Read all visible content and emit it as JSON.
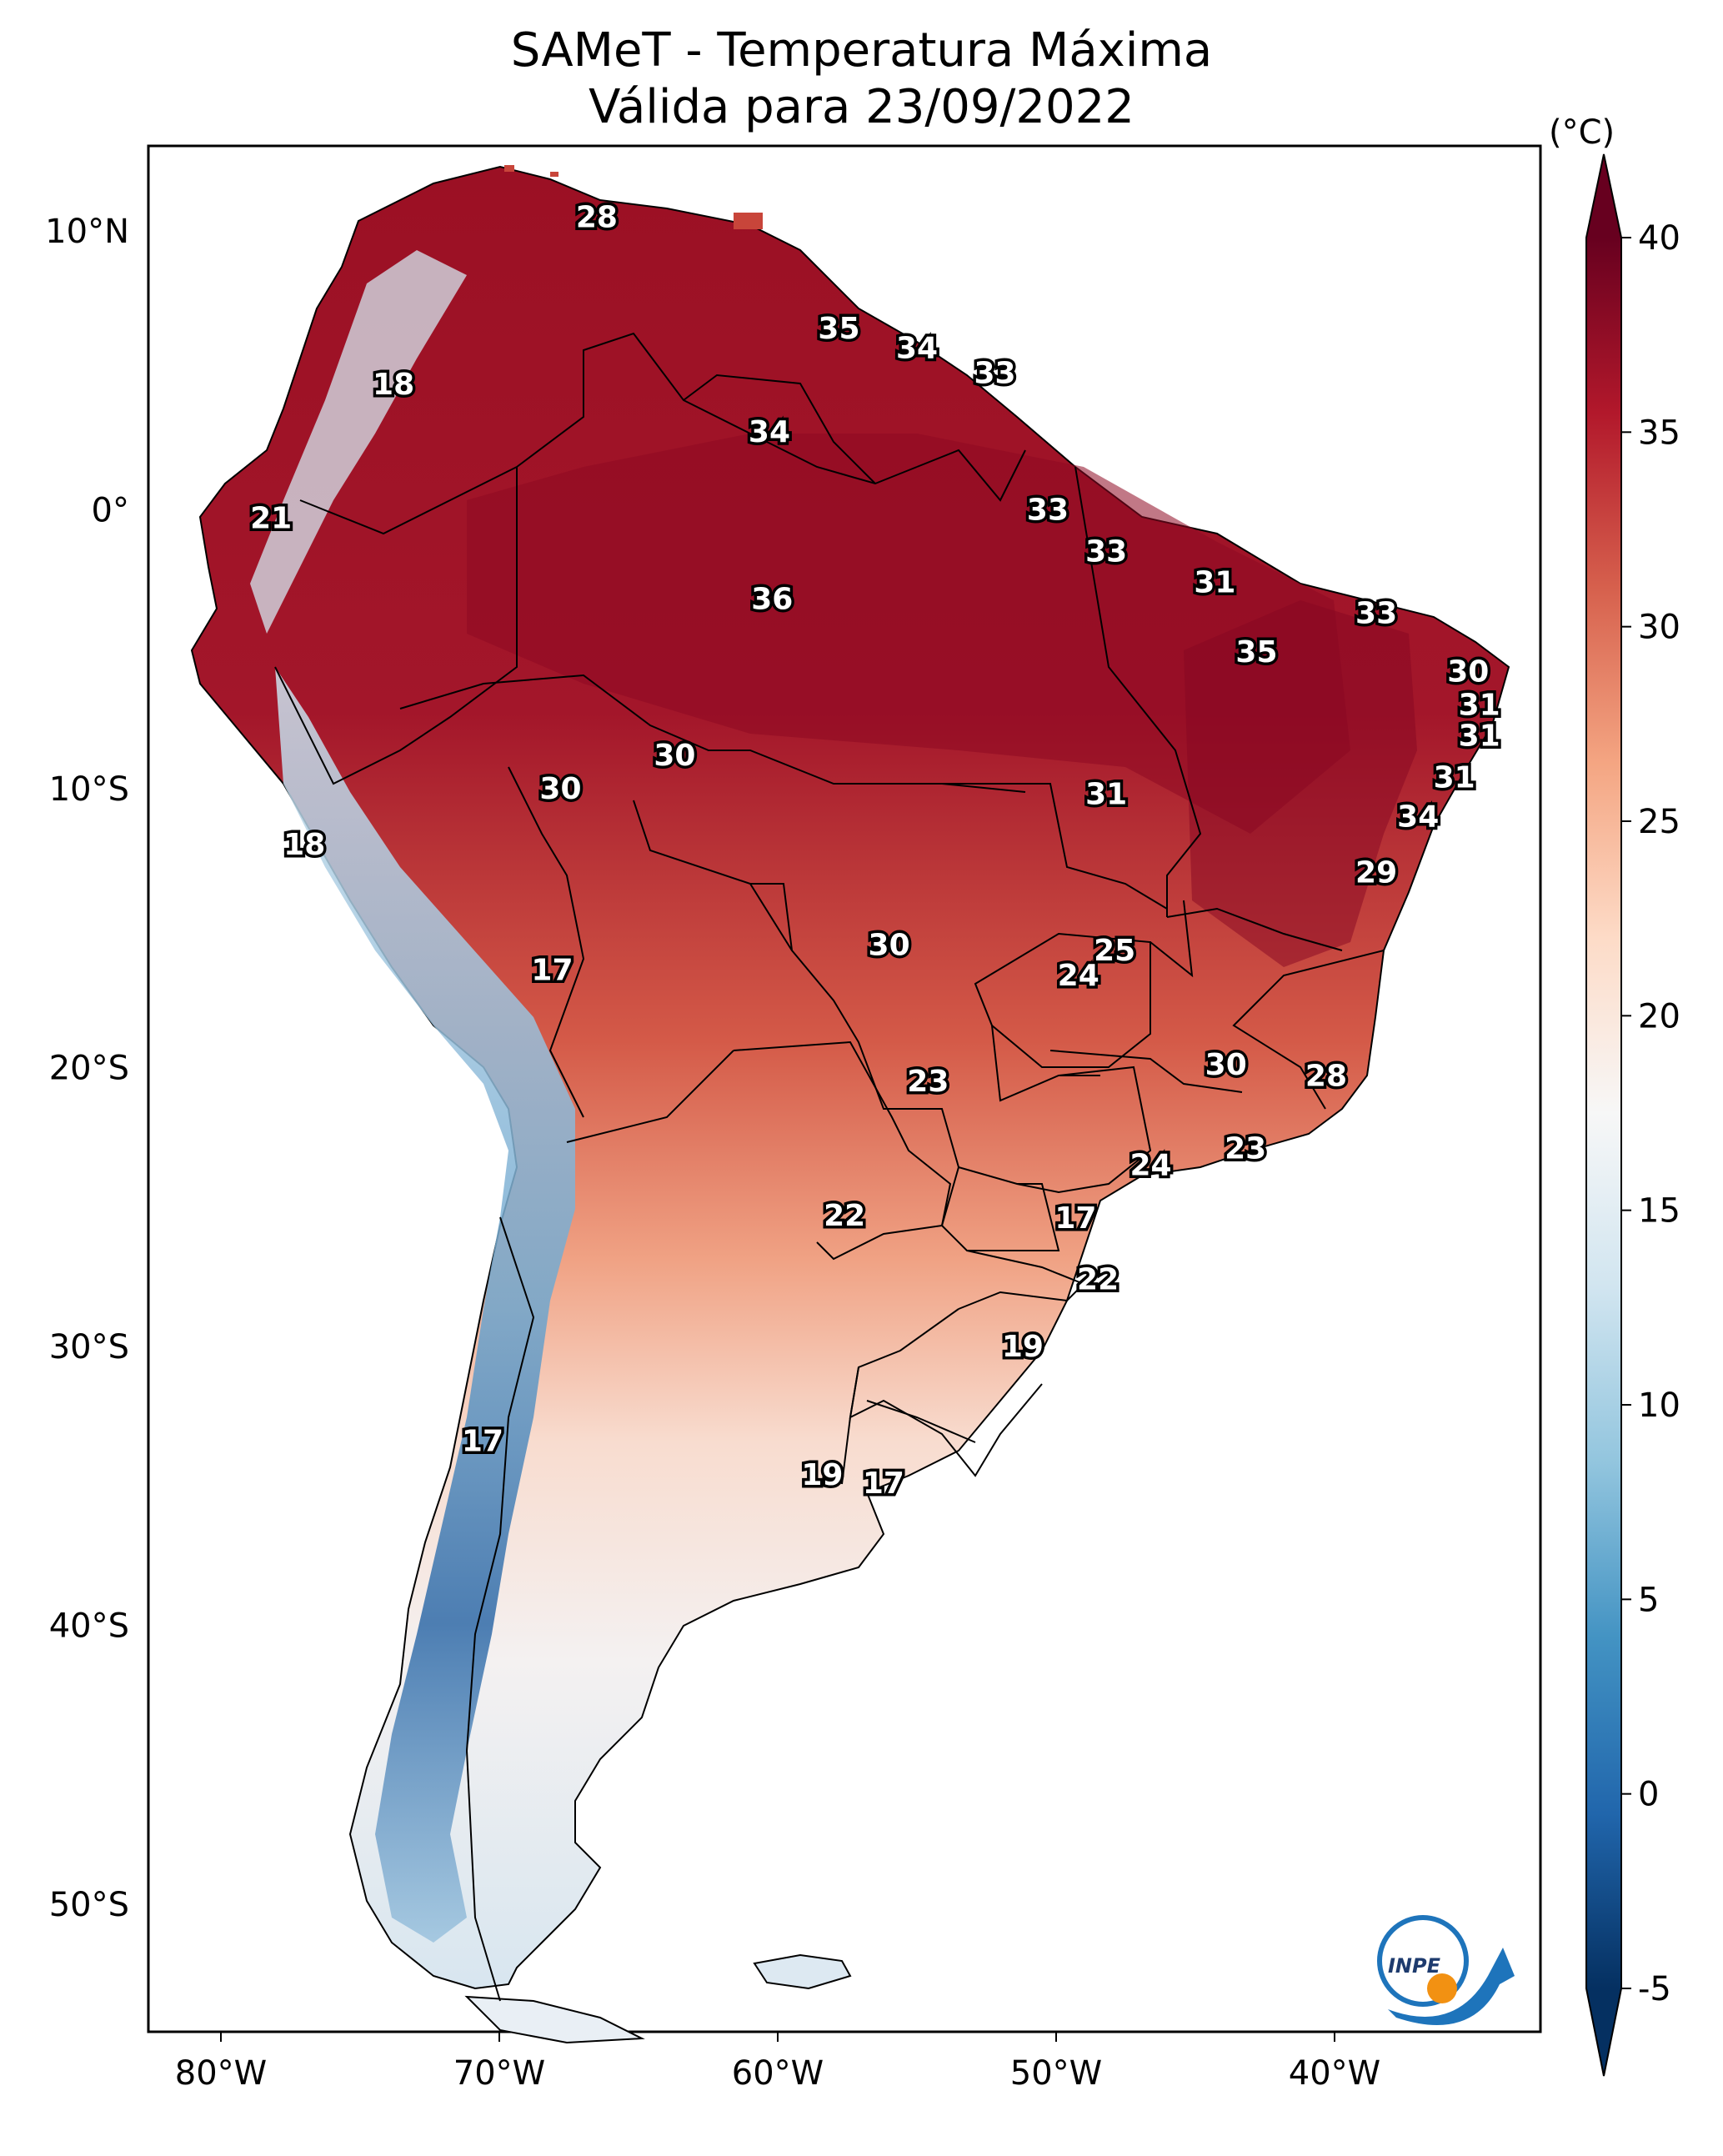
{
  "title": {
    "line1": "SAMeT - Temperatura Máxima",
    "line2": "Válida para 23/09/2022"
  },
  "axes": {
    "lon_ticks": [
      "80°W",
      "70°W",
      "60°W",
      "50°W",
      "40°W"
    ],
    "lat_ticks": [
      "10°N",
      "0°",
      "10°S",
      "20°S",
      "30°S",
      "40°S",
      "50°S"
    ]
  },
  "colorbar": {
    "unit": "(°C)",
    "ticks": [
      "40",
      "35",
      "30",
      "25",
      "20",
      "15",
      "10",
      "5",
      "0",
      "-5"
    ],
    "range": [
      -5,
      40
    ],
    "colors": [
      "#053061",
      "#2166ac",
      "#4393c3",
      "#92c5de",
      "#d1e5f0",
      "#f7f7f7",
      "#fddbc7",
      "#f4a582",
      "#d6604d",
      "#b2182b",
      "#67001f"
    ]
  },
  "logo": {
    "name": "INPE",
    "icon": "inpe-logo-icon"
  },
  "station_values": [
    {
      "v": "28",
      "lon": -66.5,
      "lat": 10.5
    },
    {
      "v": "18",
      "lon": -73.8,
      "lat": 4.5
    },
    {
      "v": "35",
      "lon": -57.8,
      "lat": 6.5
    },
    {
      "v": "34",
      "lon": -55.0,
      "lat": 5.8
    },
    {
      "v": "33",
      "lon": -52.2,
      "lat": 4.9
    },
    {
      "v": "34",
      "lon": -60.3,
      "lat": 2.8
    },
    {
      "v": "21",
      "lon": -78.2,
      "lat": -0.3
    },
    {
      "v": "33",
      "lon": -50.3,
      "lat": 0.0
    },
    {
      "v": "33",
      "lon": -48.2,
      "lat": -1.5
    },
    {
      "v": "31",
      "lon": -44.3,
      "lat": -2.6
    },
    {
      "v": "36",
      "lon": -60.2,
      "lat": -3.2
    },
    {
      "v": "33",
      "lon": -38.5,
      "lat": -3.7
    },
    {
      "v": "35",
      "lon": -42.8,
      "lat": -5.1
    },
    {
      "v": "30",
      "lon": -35.2,
      "lat": -5.8
    },
    {
      "v": "31",
      "lon": -34.8,
      "lat": -7.0
    },
    {
      "v": "31",
      "lon": -34.8,
      "lat": -8.1
    },
    {
      "v": "30",
      "lon": -63.7,
      "lat": -8.8
    },
    {
      "v": "30",
      "lon": -67.8,
      "lat": -10.0
    },
    {
      "v": "31",
      "lon": -48.2,
      "lat": -10.2
    },
    {
      "v": "31",
      "lon": -35.7,
      "lat": -9.6
    },
    {
      "v": "34",
      "lon": -37.0,
      "lat": -11.0
    },
    {
      "v": "18",
      "lon": -77.0,
      "lat": -12.0
    },
    {
      "v": "29",
      "lon": -38.5,
      "lat": -13.0
    },
    {
      "v": "30",
      "lon": -56.0,
      "lat": -15.6
    },
    {
      "v": "25",
      "lon": -47.9,
      "lat": -15.8
    },
    {
      "v": "24",
      "lon": -49.2,
      "lat": -16.7
    },
    {
      "v": "17",
      "lon": -68.1,
      "lat": -16.5
    },
    {
      "v": "23",
      "lon": -54.6,
      "lat": -20.5
    },
    {
      "v": "30",
      "lon": -43.9,
      "lat": -19.9
    },
    {
      "v": "28",
      "lon": -40.3,
      "lat": -20.3
    },
    {
      "v": "24",
      "lon": -46.6,
      "lat": -23.5
    },
    {
      "v": "23",
      "lon": -43.2,
      "lat": -22.9
    },
    {
      "v": "22",
      "lon": -57.6,
      "lat": -25.3
    },
    {
      "v": "17",
      "lon": -49.3,
      "lat": -25.4
    },
    {
      "v": "22",
      "lon": -48.5,
      "lat": -27.6
    },
    {
      "v": "19",
      "lon": -51.2,
      "lat": -30.0
    },
    {
      "v": "17",
      "lon": -70.6,
      "lat": -33.4
    },
    {
      "v": "19",
      "lon": -58.4,
      "lat": -34.6
    },
    {
      "v": "17",
      "lon": -56.2,
      "lat": -34.9
    }
  ]
}
